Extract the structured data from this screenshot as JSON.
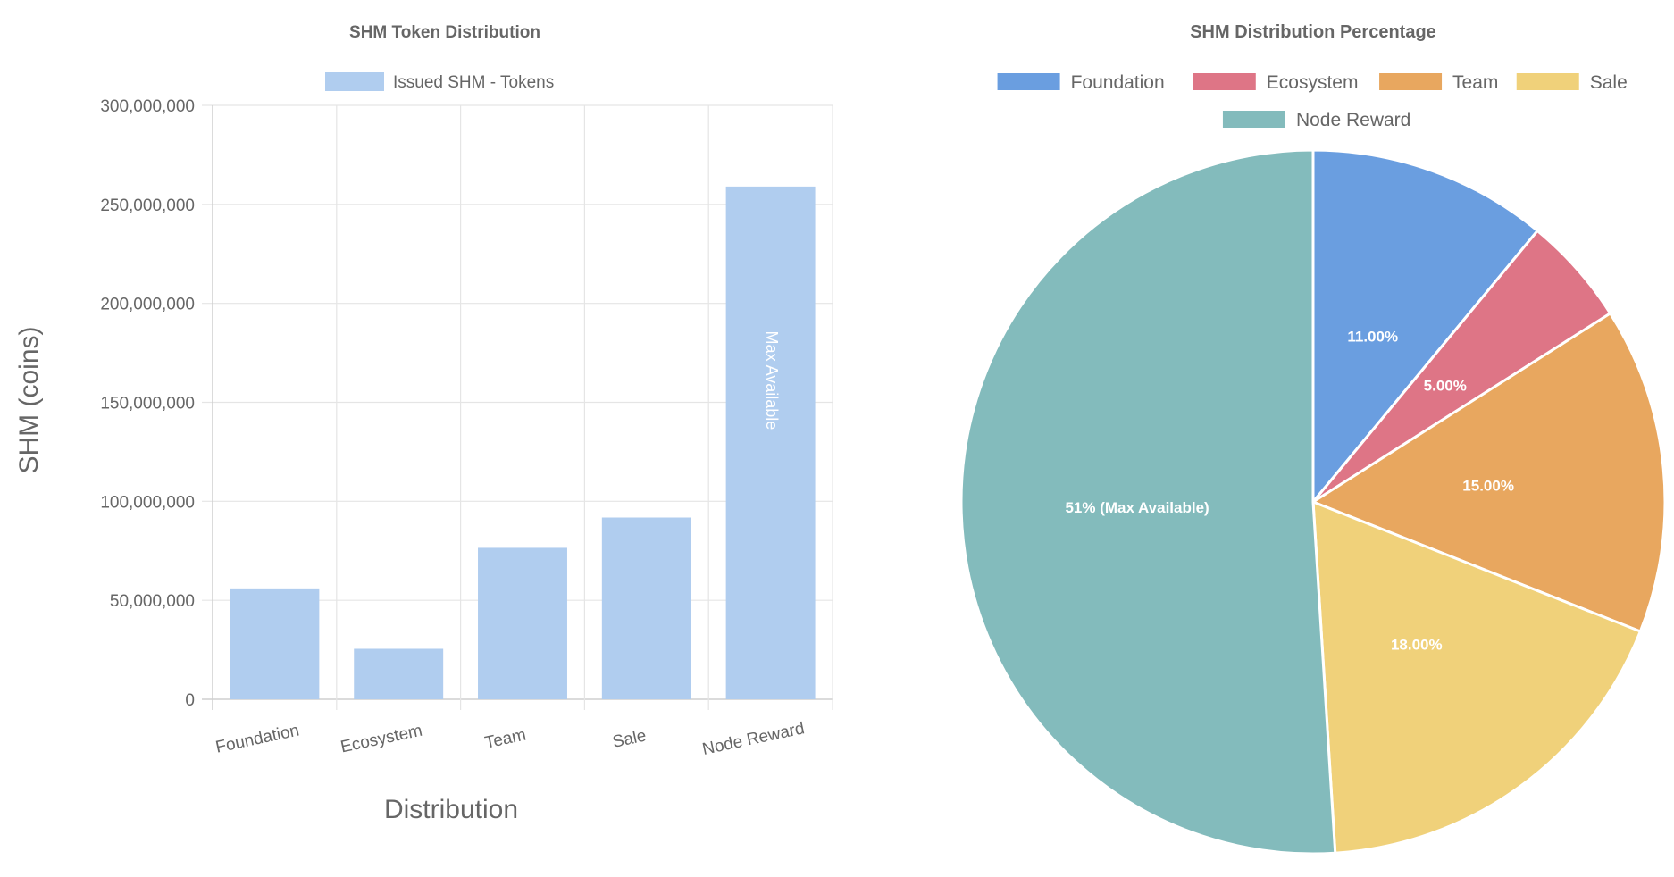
{
  "chart_data": [
    {
      "type": "bar",
      "title": "SHM Token Distribution",
      "xlabel": "Distribution",
      "ylabel": "SHM (coins)",
      "categories": [
        "Foundation",
        "Ecosystem",
        "Team",
        "Sale",
        "Node Reward"
      ],
      "series": [
        {
          "name": "Issued SHM - Tokens",
          "color": "#b0cdef",
          "values": [
            56000000,
            25500000,
            76500000,
            91800000,
            259000000
          ]
        }
      ],
      "ylim": [
        0,
        300000000
      ],
      "yticks": [
        0,
        50000000,
        100000000,
        150000000,
        200000000,
        250000000,
        300000000
      ],
      "ytick_labels": [
        "0",
        "50,000,000",
        "100,000,000",
        "150,000,000",
        "200,000,000",
        "250,000,000",
        "300,000,000"
      ],
      "annotations": [
        {
          "category": "Node Reward",
          "text": "Max Available"
        }
      ],
      "grid": true,
      "legend": "top"
    },
    {
      "type": "pie",
      "title": "SHM Distribution Percentage",
      "categories": [
        "Foundation",
        "Ecosystem",
        "Team",
        "Sale",
        "Node Reward"
      ],
      "values": [
        11,
        5,
        15,
        18,
        51
      ],
      "labels": [
        "11.00%",
        "5.00%",
        "15.00%",
        "18.00%",
        "51% (Max Available)"
      ],
      "colors": [
        "#6a9ee0",
        "#de7586",
        "#e8a75f",
        "#f0d17a",
        "#83bbbc"
      ],
      "legend": "top"
    }
  ]
}
